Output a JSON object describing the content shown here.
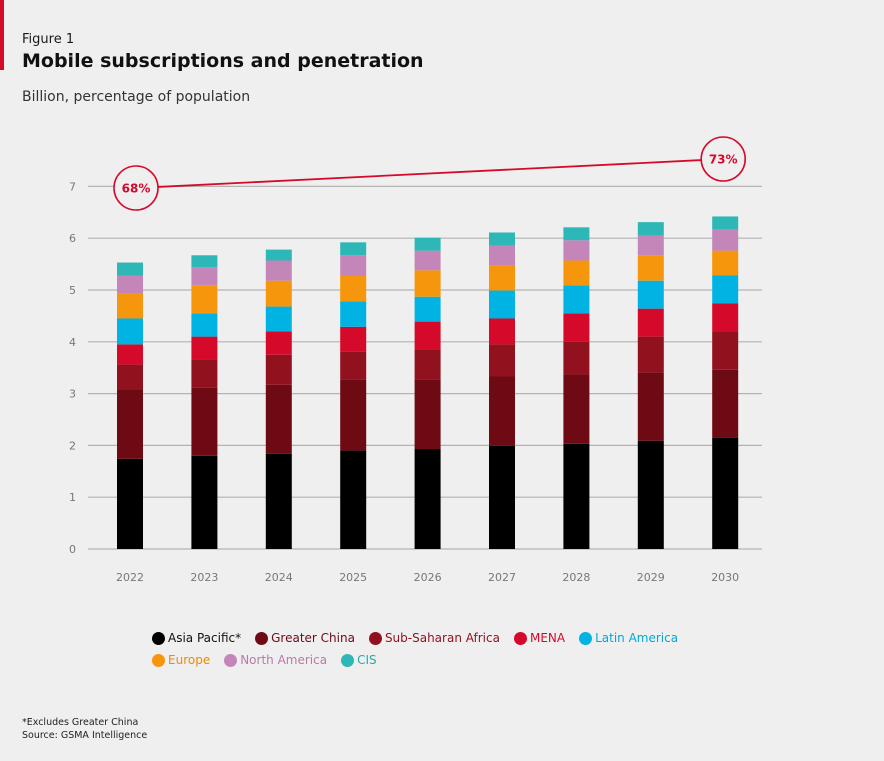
{
  "header": {
    "figure_label": "Figure 1",
    "title": "Mobile subscriptions and penetration",
    "subtitle": "Billion, percentage of population"
  },
  "colors": {
    "accent": "#d50a2b",
    "gridline": "#b3b3b3",
    "axis_text": "#777777",
    "penetration_line": "#d50a2b"
  },
  "chart_data": {
    "type": "bar",
    "stacked": true,
    "title": "Mobile subscriptions and penetration",
    "subtitle": "Billion, percentage of population",
    "xlabel": "",
    "ylabel": "Billion",
    "ylim": [
      0,
      7
    ],
    "yticks": [
      0,
      1,
      2,
      3,
      4,
      5,
      6,
      7
    ],
    "grid": true,
    "legend_position": "bottom",
    "categories": [
      "2022",
      "2023",
      "2024",
      "2025",
      "2026",
      "2027",
      "2028",
      "2029",
      "2030"
    ],
    "series": [
      {
        "name": "Asia Pacific*",
        "color": "#000000",
        "values": [
          1.74,
          1.8,
          1.84,
          1.9,
          1.93,
          1.99,
          2.03,
          2.09,
          2.15
        ]
      },
      {
        "name": "Greater China",
        "color": "#6e0a14",
        "values": [
          1.34,
          1.31,
          1.33,
          1.37,
          1.34,
          1.34,
          1.34,
          1.32,
          1.31
        ]
      },
      {
        "name": "Sub-Saharan Africa",
        "color": "#92111f",
        "values": [
          0.48,
          0.55,
          0.58,
          0.54,
          0.58,
          0.62,
          0.63,
          0.69,
          0.74
        ]
      },
      {
        "name": "MENA",
        "color": "#d50a2b",
        "values": [
          0.39,
          0.44,
          0.45,
          0.48,
          0.54,
          0.5,
          0.55,
          0.54,
          0.54
        ]
      },
      {
        "name": "Latin America",
        "color": "#00b3e3",
        "values": [
          0.5,
          0.45,
          0.48,
          0.49,
          0.48,
          0.54,
          0.54,
          0.54,
          0.54
        ]
      },
      {
        "name": "Europe",
        "color": "#f5960c",
        "values": [
          0.48,
          0.54,
          0.5,
          0.5,
          0.51,
          0.48,
          0.48,
          0.49,
          0.48
        ]
      },
      {
        "name": "North America",
        "color": "#c485b9",
        "values": [
          0.35,
          0.35,
          0.39,
          0.39,
          0.38,
          0.39,
          0.39,
          0.38,
          0.41
        ]
      },
      {
        "name": "CIS",
        "color": "#2db7b6",
        "values": [
          0.25,
          0.23,
          0.21,
          0.25,
          0.25,
          0.25,
          0.25,
          0.26,
          0.25
        ]
      }
    ],
    "penetration": {
      "name": "Penetration (% of population)",
      "start": {
        "category": "2022",
        "value_percent": 68,
        "label": "68%"
      },
      "end": {
        "category": "2030",
        "value_percent": 73,
        "label": "73%"
      }
    }
  },
  "legend": {
    "row1": [
      {
        "label": "Asia Pacific*",
        "color": "#000000",
        "text_color": "#111111"
      },
      {
        "label": "Greater China",
        "color": "#6e0a14",
        "text_color": "#6e0a14"
      },
      {
        "label": "Sub-Saharan Africa",
        "color": "#92111f",
        "text_color": "#92111f"
      },
      {
        "label": "MENA",
        "color": "#d50a2b",
        "text_color": "#d50a2b"
      },
      {
        "label": "Latin America",
        "color": "#00b3e3",
        "text_color": "#00a9d8"
      }
    ],
    "row2": [
      {
        "label": "Europe",
        "color": "#f5960c",
        "text_color": "#f08a00"
      },
      {
        "label": "North America",
        "color": "#c485b9",
        "text_color": "#b97aae"
      },
      {
        "label": "CIS",
        "color": "#2db7b6",
        "text_color": "#27aaa9"
      }
    ]
  },
  "footnotes": {
    "note": "*Excludes Greater China",
    "source": "Source: GSMA Intelligence"
  }
}
